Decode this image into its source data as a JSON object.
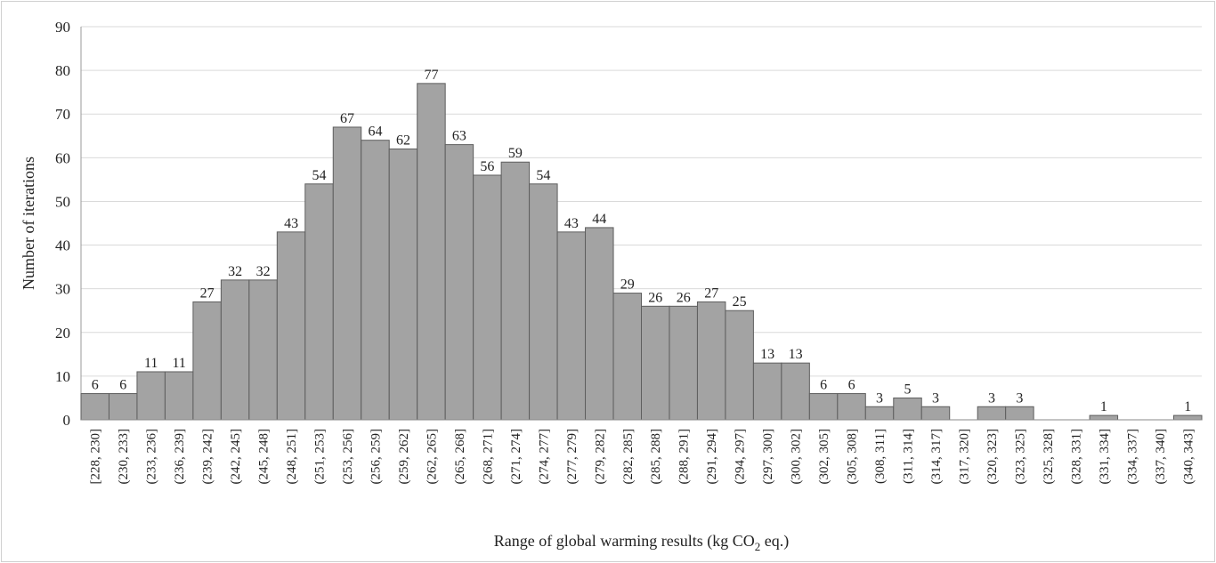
{
  "chart_data": {
    "type": "bar",
    "title": "",
    "xlabel": "Range of global warming results (kg CO2 eq.)",
    "xlabel_parts": {
      "before": "Range of global warming results (kg CO",
      "subscript": "2",
      "after": " eq.)"
    },
    "ylabel": "Number of iterations",
    "ylim": [
      0,
      90
    ],
    "ytick_step": 10,
    "grid": true,
    "legend": "none",
    "bar_color": "#a3a3a3",
    "bar_edge_color": "#5e5e5e",
    "categories": [
      "[228, 230]",
      "(230, 233]",
      "(233, 236]",
      "(236, 239]",
      "(239, 242]",
      "(242, 245]",
      "(245, 248]",
      "(248, 251]",
      "(251, 253]",
      "(253, 256]",
      "(256, 259]",
      "(259, 262]",
      "(262, 265]",
      "(265, 268]",
      "(268, 271]",
      "(271, 274]",
      "(274, 277]",
      "(277, 279]",
      "(279, 282]",
      "(282, 285]",
      "(285, 288]",
      "(288, 291]",
      "(291, 294]",
      "(294, 297]",
      "(297, 300]",
      "(300, 302]",
      "(302, 305]",
      "(305, 308]",
      "(308, 311]",
      "(311, 314]",
      "(314, 317]",
      "(317, 320]",
      "(320, 323]",
      "(323, 325]",
      "(325, 328]",
      "(328, 331]",
      "(331, 334]",
      "(334, 337]",
      "(337, 340]",
      "(340, 343]"
    ],
    "values": [
      6,
      6,
      11,
      11,
      27,
      32,
      32,
      43,
      54,
      67,
      64,
      62,
      77,
      63,
      56,
      59,
      54,
      43,
      44,
      29,
      26,
      26,
      27,
      25,
      13,
      13,
      6,
      6,
      3,
      5,
      3,
      0,
      3,
      3,
      0,
      0,
      1,
      0,
      0,
      1
    ]
  }
}
